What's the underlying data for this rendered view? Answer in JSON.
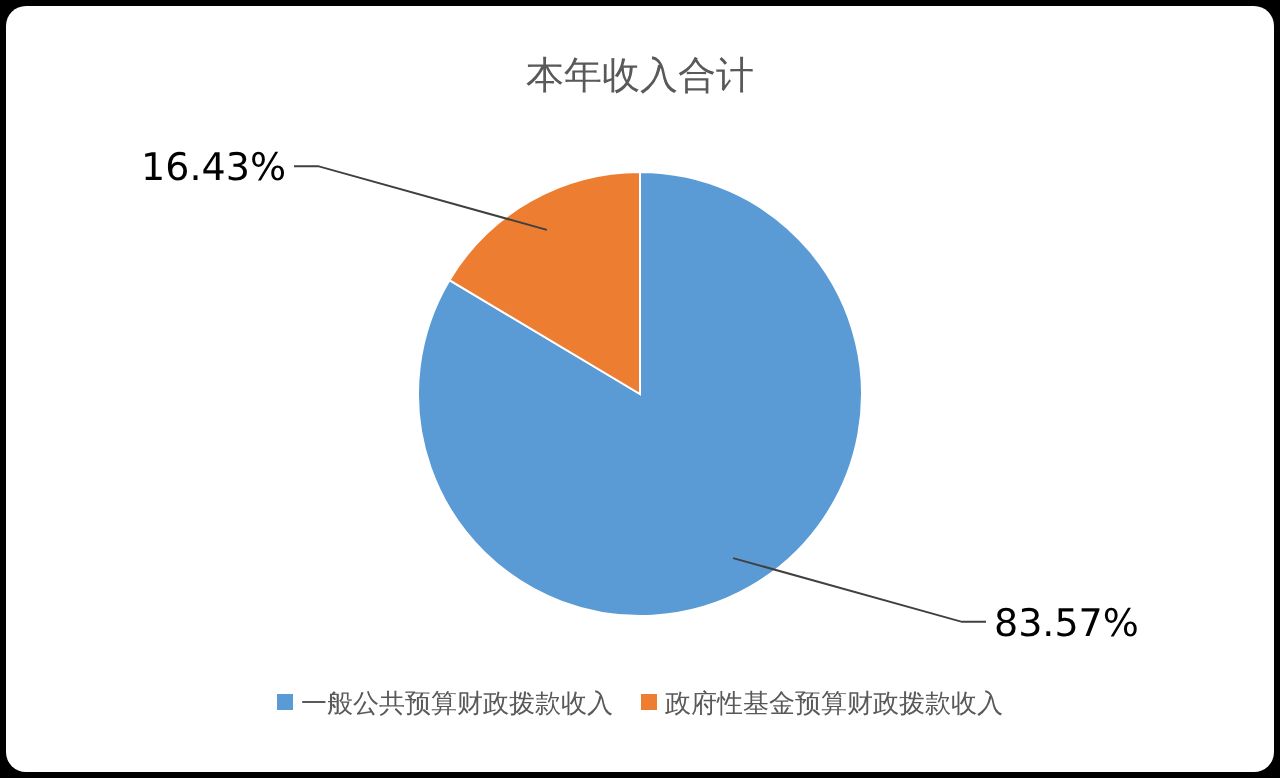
{
  "chart_data": {
    "type": "pie",
    "title": "本年收入合计",
    "categories": [
      "一般公共预算财政拨款收入",
      "政府性基金预算财政拨款收入"
    ],
    "values": [
      83.57,
      16.43
    ],
    "colors": [
      "#5b9bd5",
      "#ed7d31"
    ],
    "value_labels": [
      "83.57%",
      "16.43%"
    ],
    "legend": "bottom"
  }
}
